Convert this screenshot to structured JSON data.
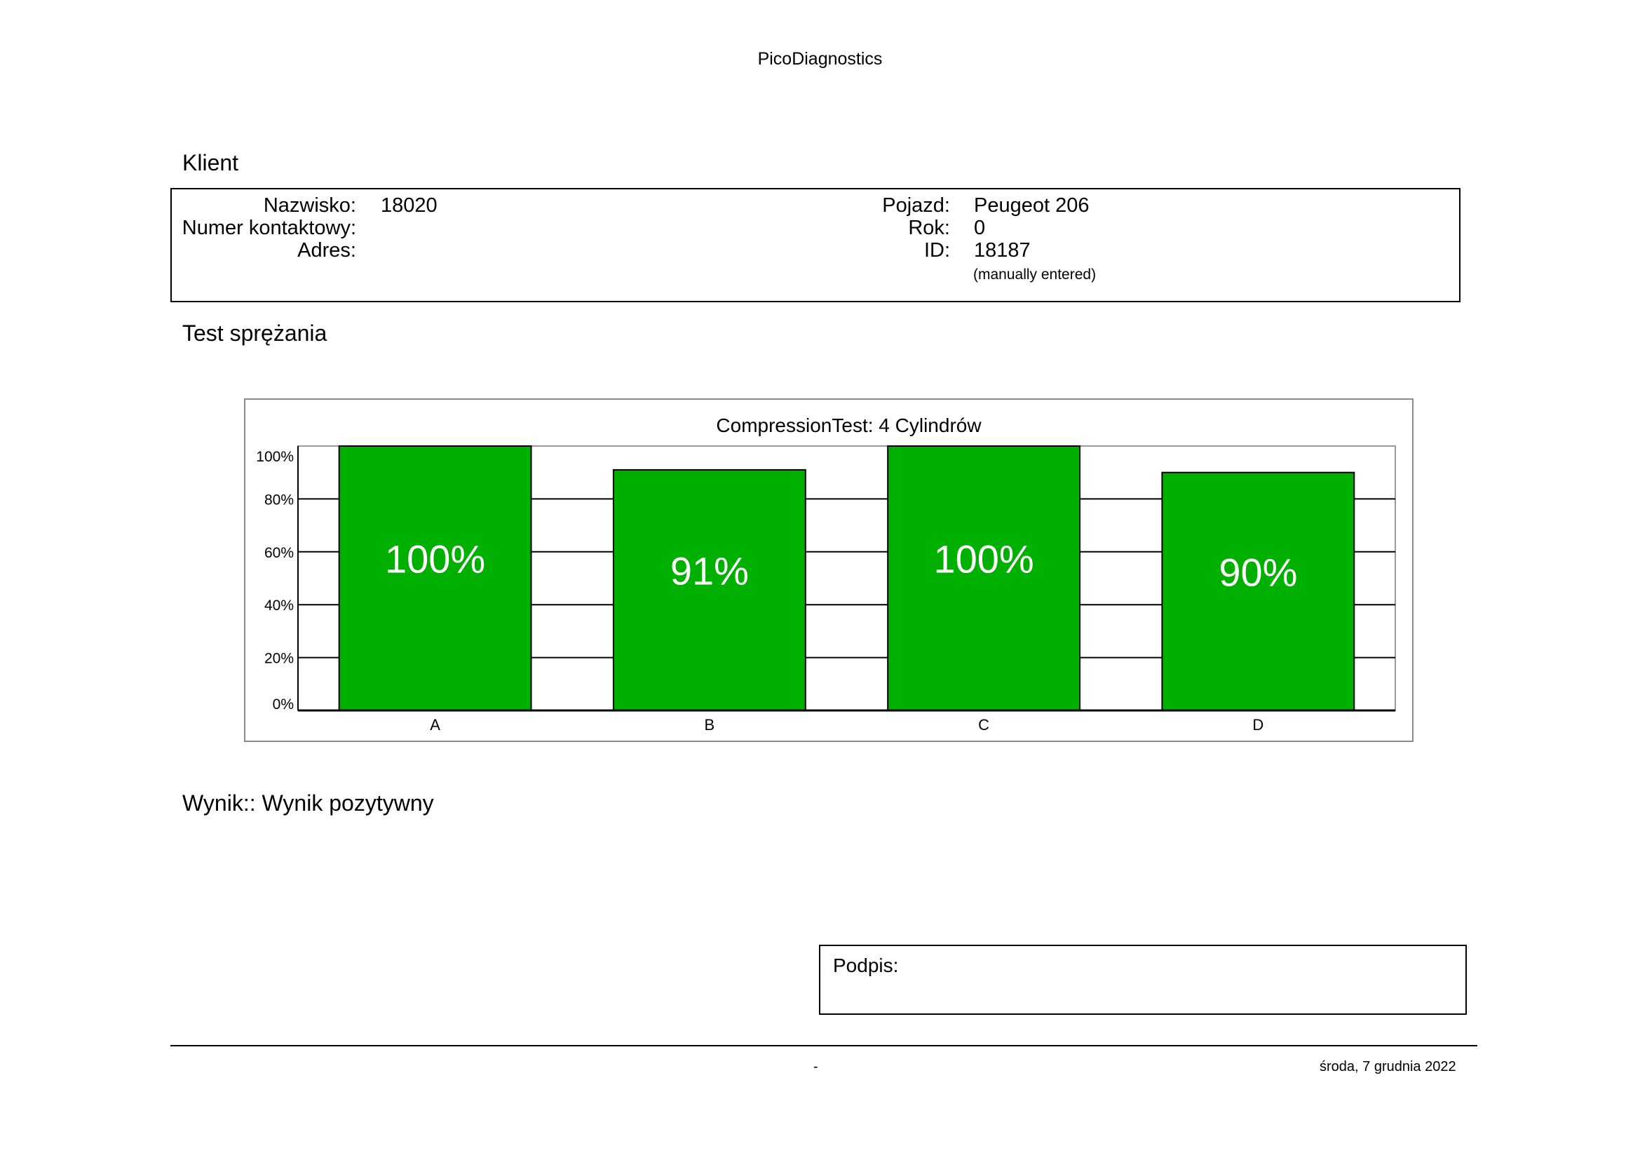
{
  "header": {
    "title": "PicoDiagnostics"
  },
  "client": {
    "section_title": "Klient",
    "surname_label": "Nazwisko:",
    "surname_value": "18020",
    "phone_label": "Numer kontaktowy:",
    "address_label": "Adres:",
    "vehicle_label": "Pojazd:",
    "vehicle_value": "Peugeot 206",
    "year_label": "Rok:",
    "year_value": "0",
    "id_label": "ID:",
    "id_value": "18187",
    "id_note": "(manually entered)"
  },
  "test": {
    "section_title": "Test sprężania"
  },
  "chart_data": {
    "type": "bar",
    "title": "CompressionTest: 4 Cylindrów",
    "categories": [
      "A",
      "B",
      "C",
      "D"
    ],
    "values": [
      100,
      91,
      100,
      90
    ],
    "value_labels": [
      "100%",
      "91%",
      "100%",
      "90%"
    ],
    "y_ticks": [
      0,
      20,
      40,
      60,
      80,
      100
    ],
    "y_tick_labels": [
      "0%",
      "20%",
      "40%",
      "60%",
      "80%",
      "100%"
    ],
    "ylim": [
      0,
      100
    ],
    "xlabel": "",
    "ylabel": "",
    "bar_color": "#00b000",
    "grid": true
  },
  "result": {
    "text": "Wynik:: Wynik pozytywny"
  },
  "signature": {
    "label": "Podpis:"
  },
  "footer": {
    "center": "-",
    "date": "środa, 7 grudnia 2022"
  }
}
